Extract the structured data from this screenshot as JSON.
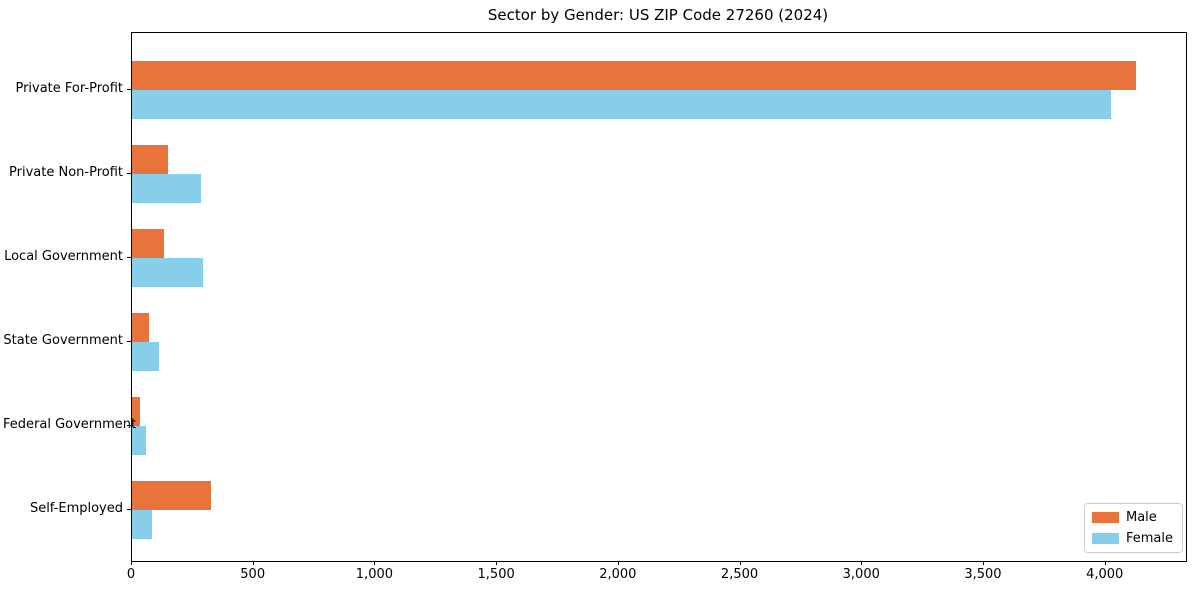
{
  "title": "Sector by Gender: US ZIP Code 27260 (2024)",
  "colors": {
    "male": "#e8743b",
    "female": "#87ceeb",
    "axis": "#000000",
    "legend_border": "#cccccc",
    "background": "#ffffff"
  },
  "chart_data": {
    "type": "bar",
    "orientation": "horizontal",
    "title": "Sector by Gender: US ZIP Code 27260 (2024)",
    "categories": [
      "Private For-Profit",
      "Private Non-Profit",
      "Local Government",
      "State Government",
      "Federal Government",
      "Self-Employed"
    ],
    "series": [
      {
        "name": "Male",
        "color": "#e8743b",
        "values": [
          4123,
          147,
          133,
          69,
          33,
          326
        ]
      },
      {
        "name": "Female",
        "color": "#87ceeb",
        "values": [
          4023,
          283,
          290,
          112,
          58,
          81
        ]
      }
    ],
    "xlabel": "",
    "ylabel": "",
    "xlim": [
      0,
      4330
    ],
    "x_ticks": {
      "values": [
        0,
        500,
        1000,
        1500,
        2000,
        2500,
        3000,
        3500,
        4000
      ],
      "labels": [
        "0",
        "500",
        "1,000",
        "1,500",
        "2,000",
        "2,500",
        "3,000",
        "3,500",
        "4,000"
      ]
    },
    "grid": false,
    "legend": {
      "position": "lower right",
      "entries": [
        "Male",
        "Female"
      ]
    }
  }
}
